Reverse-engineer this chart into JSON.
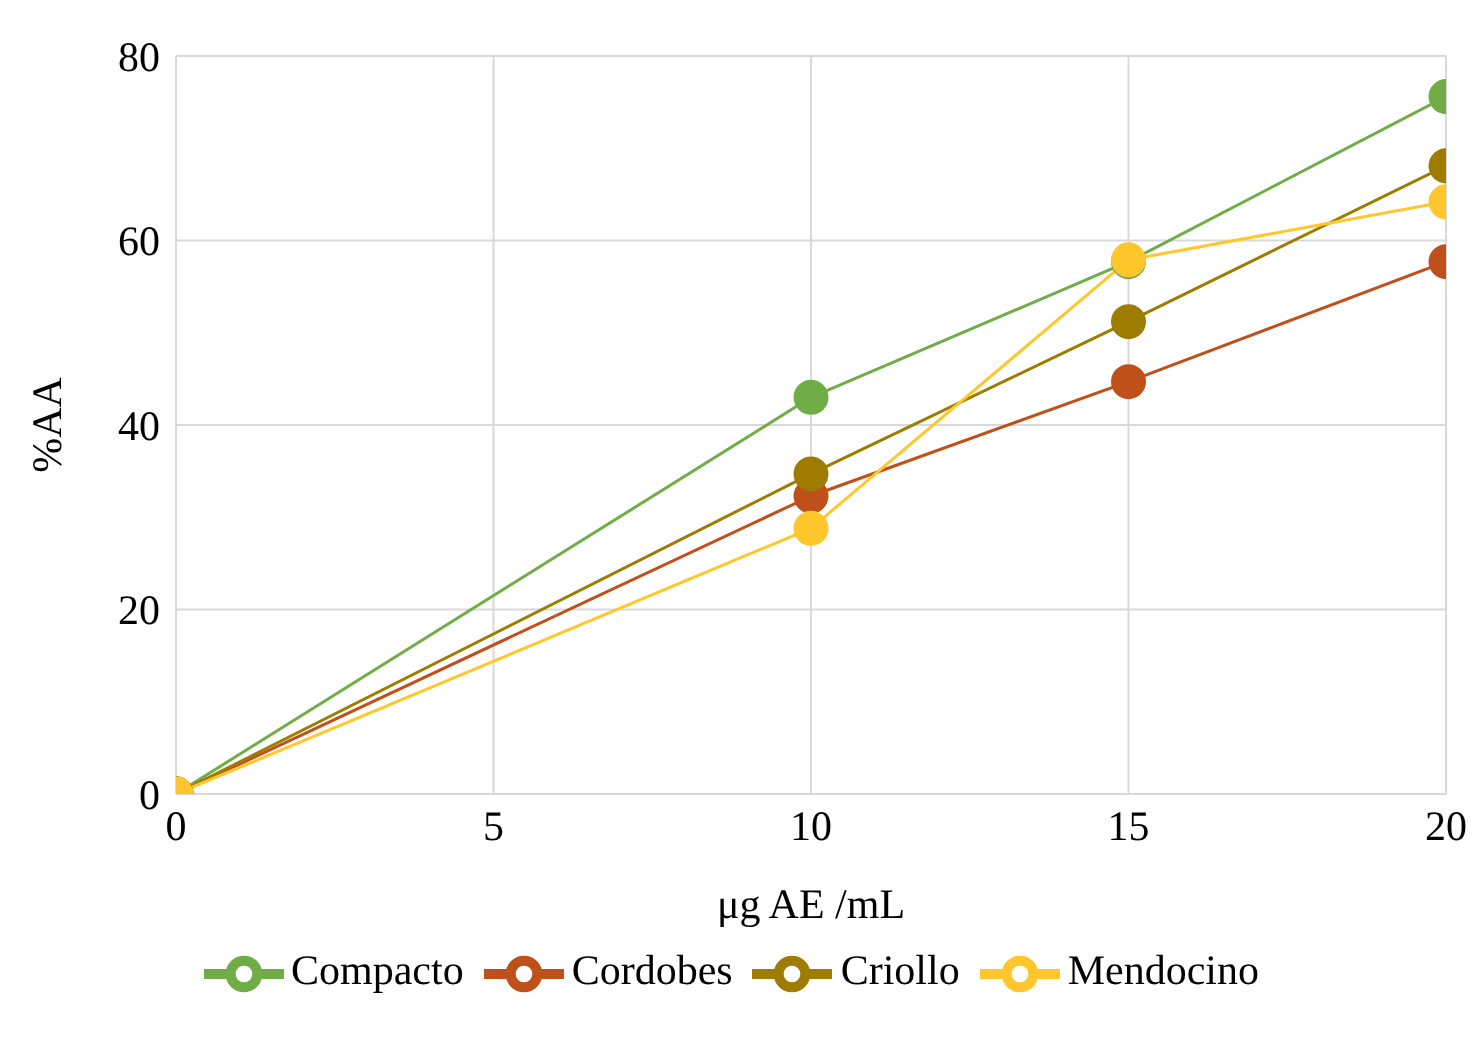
{
  "chart_data": {
    "type": "line",
    "xlabel": "μg AE /mL",
    "ylabel": "%AA",
    "x": [
      0,
      10,
      15,
      20
    ],
    "series": [
      {
        "name": "Compacto",
        "color": "#70ad47",
        "values": [
          0,
          43,
          57.7,
          75.6
        ]
      },
      {
        "name": "Cordobes",
        "color": "#c0501a",
        "values": [
          0,
          32.3,
          44.7,
          57.7
        ]
      },
      {
        "name": "Criollo",
        "color": "#9e7c00",
        "values": [
          0,
          34.7,
          51.2,
          68.1
        ]
      },
      {
        "name": "Mendocino",
        "color": "#ffc72c",
        "values": [
          0,
          28.8,
          57.9,
          64.2
        ]
      }
    ],
    "xlim": [
      0,
      20
    ],
    "xticks": [
      0,
      5,
      10,
      15,
      20
    ],
    "ylim": [
      0,
      80
    ],
    "yticks": [
      0,
      20,
      40,
      60,
      80
    ],
    "grid": true,
    "legend": "bottom",
    "marker": "circle",
    "line_style": "solid"
  }
}
